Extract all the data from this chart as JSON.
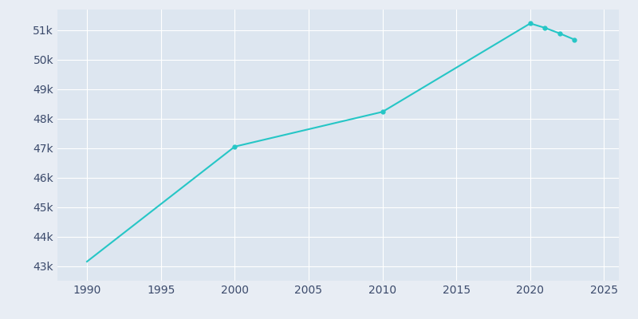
{
  "years": [
    1990,
    2000,
    2010,
    2020,
    2021,
    2022,
    2023
  ],
  "population": [
    43149,
    47050,
    48230,
    51230,
    51080,
    50890,
    50680
  ],
  "line_color": "#26C6C6",
  "marker_color": "#26C6C6",
  "bg_color": "#E8EDF4",
  "plot_bg_color": "#DDE6F0",
  "grid_color": "#FFFFFF",
  "tick_color": "#3B4A6B",
  "xlim": [
    1988,
    2026
  ],
  "ylim": [
    42500,
    51700
  ],
  "yticks": [
    43000,
    44000,
    45000,
    46000,
    47000,
    48000,
    49000,
    50000,
    51000
  ],
  "xticks": [
    1990,
    1995,
    2000,
    2005,
    2010,
    2015,
    2020,
    2025
  ],
  "marker_years": [
    2000,
    2010,
    2020,
    2021,
    2022,
    2023
  ]
}
